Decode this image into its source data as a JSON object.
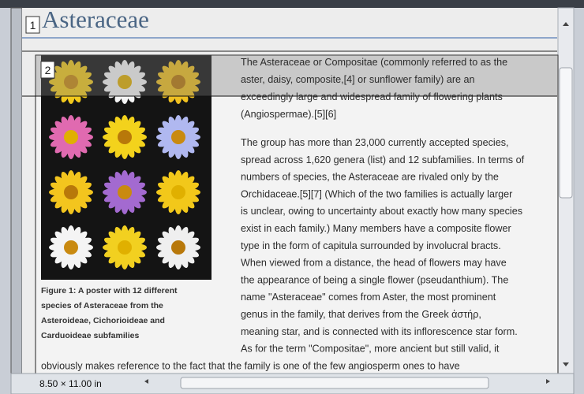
{
  "document": {
    "heading": "Asteraceae",
    "region_labels": [
      "1",
      "2"
    ],
    "paragraphs": [
      [
        "The Asteraceae or Compositae (commonly referred to as the",
        "aster, daisy, composite,[4] or sunflower family) are an",
        "exceedingly large and widespread family of flowering plants",
        "(Angiospermae).[5][6]"
      ],
      [
        "The group has more than 23,000 currently accepted species,",
        "spread across 1,620 genera (list) and 12 subfamilies. In terms of",
        "numbers of species, the Asteraceae are rivaled only by the",
        "Orchidaceae.[5][7] (Which of the two families is actually larger",
        "is unclear, owing to uncertainty about exactly how many species",
        "exist in each family.) Many members have a composite flower",
        "type in the form of capitula surrounded by involucral bracts.",
        "When viewed from a distance, the head of flowers may have",
        "the appearance of being a single flower (pseudanthium). The",
        "name \"Asteraceae\" comes from Aster, the most prominent",
        "genus in the family, that derives from the Greek ἀστήρ,",
        "meaning star, and is connected with its inflorescence star form.",
        "As for the term \"Compositae\", more ancient but still valid, it",
        "obviously makes reference to the fact that the family is one of the few angiosperm ones to have"
      ]
    ],
    "figure_caption": [
      "Figure 1: A poster with 12 different",
      "species of Asteraceae from the",
      "Asteroideae, Cichorioideae and",
      "Carduoideae subfamilies"
    ]
  },
  "status_bar": {
    "page_size": "8.50 × 11.00 in"
  }
}
